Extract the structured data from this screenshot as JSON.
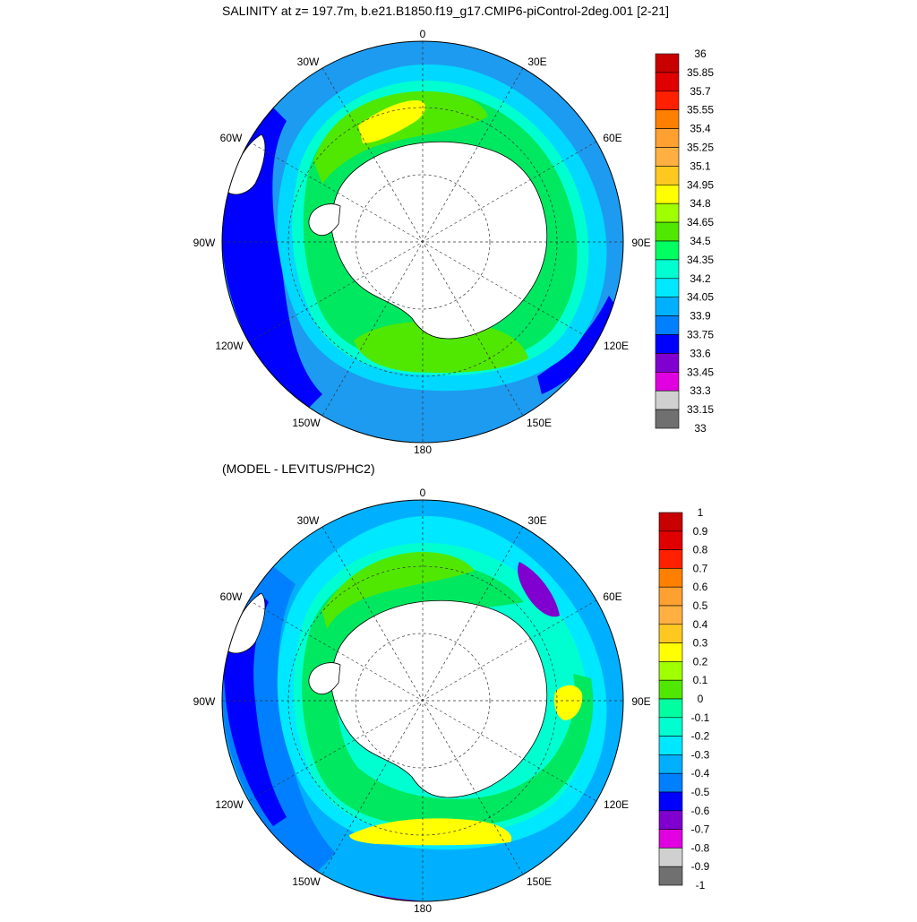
{
  "titles": {
    "top": "SALINITY at z= 197.7m, b.e21.B1850.f19_g17.CMIP6-piControl-2deg.001 [2-21]",
    "bottom": "(MODEL - LEVITUS/PHC2)"
  },
  "map": {
    "projection": "south-polar-stereographic",
    "longitude_labels": {
      "top": "0",
      "upper_left": "30W",
      "upper_right": "30E",
      "left_upper": "60W",
      "right_upper": "60E",
      "left": "90W",
      "right": "90E",
      "left_lower": "120W",
      "right_lower": "120E",
      "lower_left": "150W",
      "lower_right": "150E",
      "bottom": "180"
    }
  },
  "colorbars": {
    "salinity": {
      "labels": [
        "36",
        "35.85",
        "35.7",
        "35.55",
        "35.4",
        "35.25",
        "35.1",
        "34.95",
        "34.8",
        "34.65",
        "34.5",
        "34.35",
        "34.2",
        "34.05",
        "33.9",
        "33.75",
        "33.6",
        "33.45",
        "33.3",
        "33.15",
        "33"
      ],
      "colors": [
        "#c80000",
        "#e00000",
        "#ff2000",
        "#ff8000",
        "#ffa030",
        "#ffb040",
        "#ffc820",
        "#ffff00",
        "#a0ff00",
        "#50e800",
        "#00ff60",
        "#00ffd0",
        "#00e8ff",
        "#00b0ff",
        "#0080ff",
        "#0000ff",
        "#8000d0",
        "#e000e0",
        "#d0d0d0",
        "#707070"
      ]
    },
    "difference": {
      "labels": [
        "1",
        "0.9",
        "0.8",
        "0.7",
        "0.6",
        "0.5",
        "0.4",
        "0.3",
        "0.2",
        "0.1",
        "0",
        "-0.1",
        "-0.2",
        "-0.3",
        "-0.4",
        "-0.5",
        "-0.6",
        "-0.7",
        "-0.8",
        "-0.9",
        "-1"
      ],
      "colors": [
        "#c80000",
        "#e00000",
        "#ff2000",
        "#ff8000",
        "#ffa030",
        "#ffb040",
        "#ffc820",
        "#ffff00",
        "#a0ff00",
        "#50e800",
        "#00ffa0",
        "#00ffd0",
        "#00e8ff",
        "#00b0ff",
        "#0080ff",
        "#0000ff",
        "#8000d0",
        "#e000e0",
        "#d0d0d0",
        "#707070"
      ]
    }
  },
  "colors": {
    "land": "#ffffff",
    "coast": "#000000",
    "grid": "#333333"
  }
}
